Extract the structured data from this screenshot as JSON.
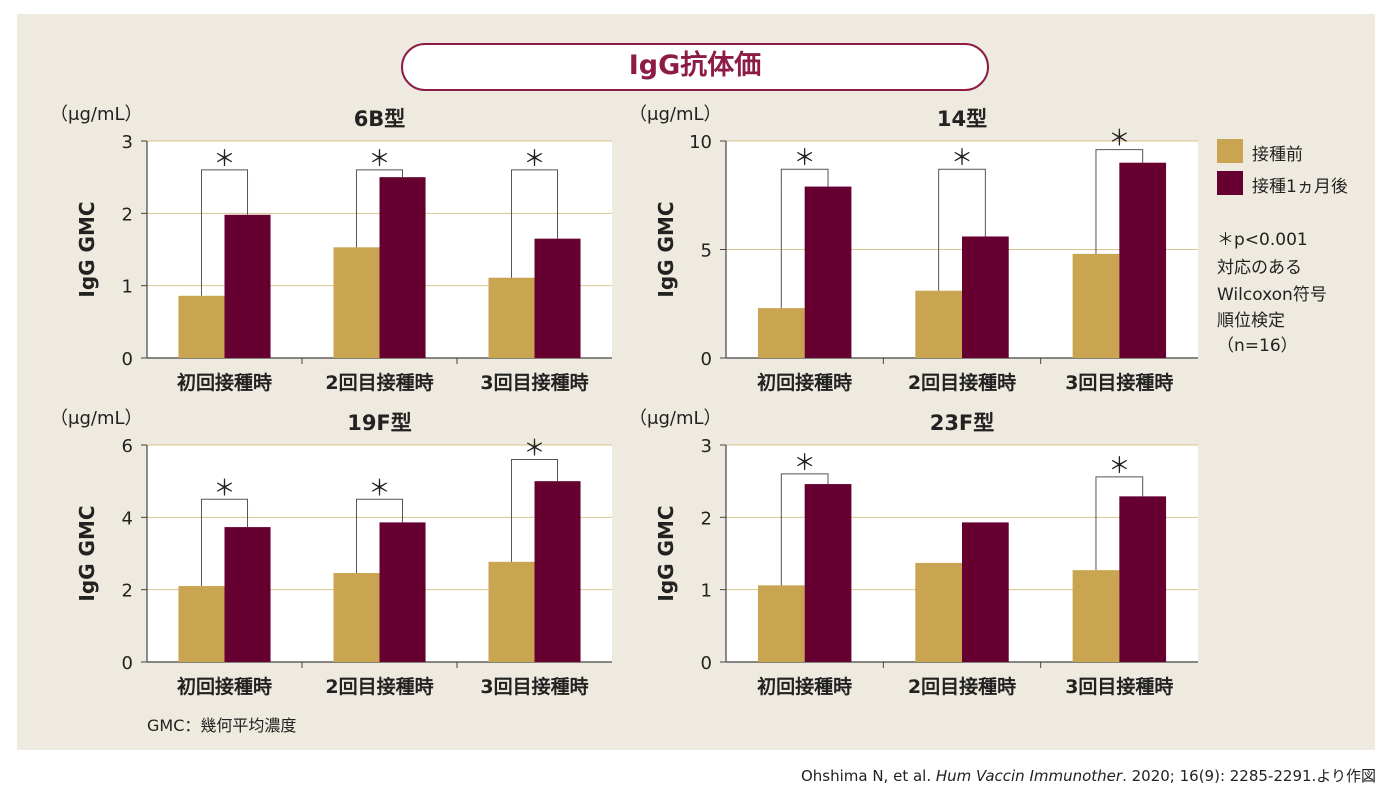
{
  "title": "IgG抗体価",
  "colors": {
    "before": "#c9a552",
    "after": "#660030",
    "grid": "#d9c48f",
    "frame": "#8c1c45",
    "panel": "#efeadf"
  },
  "legend": {
    "before": "接種前",
    "after": "接種1ヵ月後"
  },
  "significance_note": [
    "＊p<0.001",
    "対応のある",
    "Wilcoxon符号",
    "順位検定",
    "（n=16）"
  ],
  "footnote": "GMC：幾何平均濃度",
  "citation": {
    "authors": "Ohshima N, et al. ",
    "journal": "Hum Vaccin Immunother",
    "rest": ". 2020; 16(9): 2285-2291.より作図"
  },
  "chart_data": [
    {
      "type": "bar",
      "title": "6B型",
      "unit_label": "（μg/mL）",
      "ylabel": "IgG GMC",
      "categories": [
        "初回接種時",
        "2回目接種時",
        "3回目接種時"
      ],
      "ylim": [
        0,
        3
      ],
      "yticks": [
        0,
        1,
        2,
        3
      ],
      "series": [
        {
          "name": "接種前",
          "values": [
            0.86,
            1.53,
            1.11
          ]
        },
        {
          "name": "接種1ヵ月後",
          "values": [
            1.98,
            2.5,
            1.65
          ]
        }
      ],
      "significance": [
        {
          "label": "＊",
          "bracket": 2.6
        },
        {
          "label": "＊",
          "bracket": 2.6
        },
        {
          "label": "＊",
          "bracket": 2.6
        }
      ],
      "grid": true
    },
    {
      "type": "bar",
      "title": "14型",
      "unit_label": "（μg/mL）",
      "ylabel": "IgG GMC",
      "categories": [
        "初回接種時",
        "2回目接種時",
        "3回目接種時"
      ],
      "ylim": [
        0,
        10
      ],
      "yticks": [
        0,
        5,
        10
      ],
      "series": [
        {
          "name": "接種前",
          "values": [
            2.3,
            3.1,
            4.8
          ]
        },
        {
          "name": "接種1ヵ月後",
          "values": [
            7.9,
            5.6,
            9.0
          ]
        }
      ],
      "significance": [
        {
          "label": "＊",
          "bracket": 8.7
        },
        {
          "label": "＊",
          "bracket": 8.7
        },
        {
          "label": "＊",
          "bracket": 9.6
        }
      ],
      "grid": true
    },
    {
      "type": "bar",
      "title": "19F型",
      "unit_label": "（μg/mL）",
      "ylabel": "IgG GMC",
      "categories": [
        "初回接種時",
        "2回目接種時",
        "3回目接種時"
      ],
      "ylim": [
        0,
        6
      ],
      "yticks": [
        0,
        2,
        4,
        6
      ],
      "series": [
        {
          "name": "接種前",
          "values": [
            2.1,
            2.46,
            2.77
          ]
        },
        {
          "name": "接種1ヵ月後",
          "values": [
            3.73,
            3.86,
            5.0
          ]
        }
      ],
      "significance": [
        {
          "label": "＊",
          "bracket": 4.5
        },
        {
          "label": "＊",
          "bracket": 4.5
        },
        {
          "label": "＊",
          "bracket": 5.6
        }
      ],
      "grid": true
    },
    {
      "type": "bar",
      "title": "23F型",
      "unit_label": "（μg/mL）",
      "ylabel": "IgG GMC",
      "categories": [
        "初回接種時",
        "2回目接種時",
        "3回目接種時"
      ],
      "ylim": [
        0,
        3
      ],
      "yticks": [
        0,
        1,
        2,
        3
      ],
      "series": [
        {
          "name": "接種前",
          "values": [
            1.06,
            1.37,
            1.27
          ]
        },
        {
          "name": "接種1ヵ月後",
          "values": [
            2.46,
            1.93,
            2.29
          ]
        }
      ],
      "significance": [
        {
          "label": "＊",
          "bracket": 2.6
        },
        null,
        {
          "label": "＊",
          "bracket": 2.56
        }
      ],
      "grid": true
    }
  ]
}
